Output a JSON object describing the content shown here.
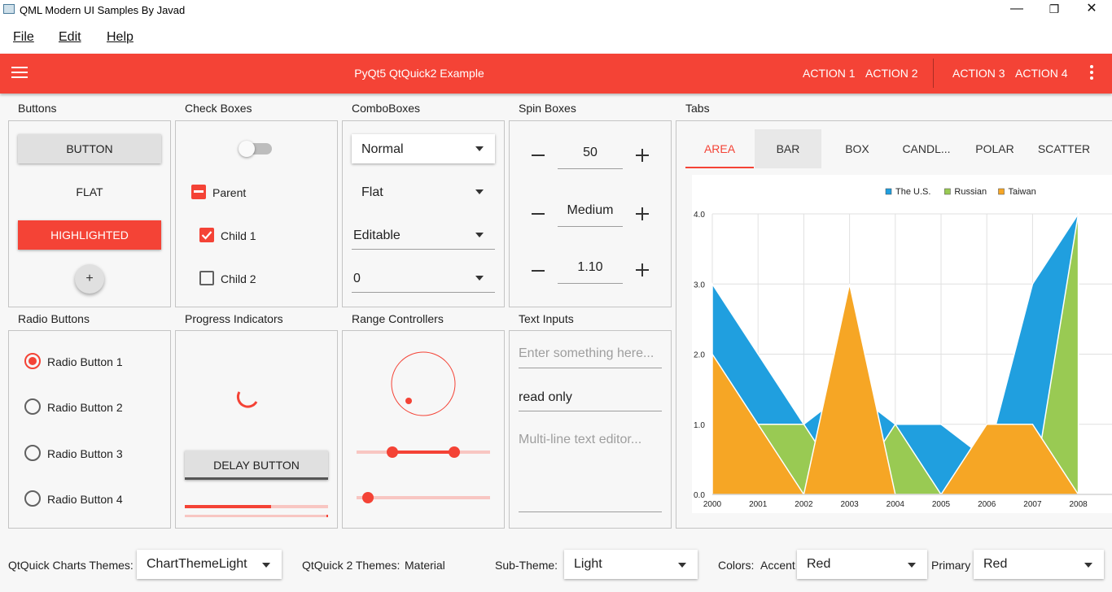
{
  "window": {
    "title": "QML Modern UI Samples By Javad",
    "minimize": "—",
    "restore": "❐",
    "close": "✕"
  },
  "menu": {
    "file": "File",
    "edit": "Edit",
    "help": "Help"
  },
  "toolbar": {
    "title": "PyQt5 QtQuick2 Example",
    "actions": [
      "ACTION 1",
      "ACTION 2",
      "ACTION 3",
      "ACTION 4"
    ],
    "accent": "#f44336"
  },
  "buttons": {
    "label": "Buttons",
    "button": "BUTTON",
    "flat": "FLAT",
    "highlighted": "HIGHLIGHTED",
    "fab": "+"
  },
  "checkboxes": {
    "label": "Check Boxes",
    "switch_checked": false,
    "parent": "Parent",
    "child1": "Child 1",
    "child2": "Child 2"
  },
  "combos": {
    "label": "ComboBoxes",
    "normal": "Normal",
    "flat": "Flat",
    "editable": "Editable",
    "zero": "0"
  },
  "spin": {
    "label": "Spin Boxes",
    "values": [
      "50",
      "Medium",
      "1.10"
    ]
  },
  "tabs": {
    "label": "Tabs",
    "items": [
      "AREA",
      "BAR",
      "BOX",
      "CANDL...",
      "POLAR",
      "SCATTER"
    ],
    "active": "AREA"
  },
  "radio": {
    "label": "Radio Buttons",
    "items": [
      "Radio Button 1",
      "Radio Button 2",
      "Radio Button 3",
      "Radio Button 4"
    ],
    "selected": "Radio Button 1"
  },
  "progress": {
    "label": "Progress Indicators",
    "delay_button": "DELAY BUTTON",
    "bar_value": 0.6
  },
  "range": {
    "label": "Range Controllers",
    "range_first": 0.27,
    "range_second": 0.73,
    "slider_value": 0.04
  },
  "text_inputs": {
    "label": "Text Inputs",
    "placeholder": "Enter something here...",
    "read_only": "read only",
    "multiline_placeholder": "Multi-line text editor..."
  },
  "bottom": {
    "charts_theme_label": "QtQuick Charts Themes:",
    "charts_theme_value": "ChartThemeLight",
    "qt_theme_label": "QtQuick 2 Themes:",
    "qt_theme_value": "Material",
    "sub_theme_label": "Sub-Theme:",
    "sub_theme_value": "Light",
    "colors_label": "Colors:",
    "accent_label": "Accent",
    "accent_value": "Red",
    "primary_label": "Primary",
    "primary_value": "Red"
  },
  "chart_data": {
    "type": "area",
    "title": "",
    "xlabel": "",
    "ylabel": "",
    "x": [
      "2000",
      "2001",
      "2002",
      "2003",
      "2004",
      "2005",
      "2006",
      "2007",
      "2008"
    ],
    "ylim": [
      0,
      4
    ],
    "yticks": [
      "0.0",
      "1.0",
      "2.0",
      "3.0",
      "4.0"
    ],
    "legend_position": "top",
    "grid": true,
    "series": [
      {
        "name": "The U.S.",
        "color": "#209fdf",
        "values": [
          3,
          2,
          1,
          1.5,
          1,
          1,
          0.5,
          3,
          4
        ]
      },
      {
        "name": "Russian",
        "color": "#99ca53",
        "values": [
          0,
          1,
          1,
          0,
          1,
          0,
          0,
          0,
          4
        ]
      },
      {
        "name": "Taiwan",
        "color": "#f6a625",
        "values": [
          2,
          1,
          0,
          3,
          0,
          0,
          1,
          1,
          0
        ]
      }
    ]
  }
}
